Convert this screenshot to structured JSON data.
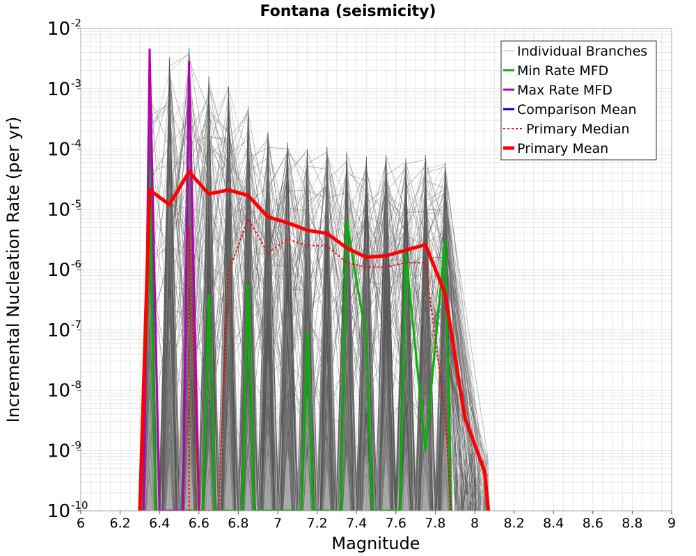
{
  "chart_data": {
    "type": "line",
    "title": "Fontana (seismicity)",
    "xlabel": "Magnitude",
    "ylabel": "Incremental Nucleation Rate (per yr)",
    "xlim": [
      6,
      9
    ],
    "ylim": [
      1e-10,
      0.01
    ],
    "yscale": "log",
    "grid": true,
    "legend_position": "top-right",
    "xticks": [
      {
        "value": 6,
        "label": "6"
      },
      {
        "value": 6.2,
        "label": "6.2"
      },
      {
        "value": 6.4,
        "label": "6.4"
      },
      {
        "value": 6.6,
        "label": "6.6"
      },
      {
        "value": 6.8,
        "label": "6.8"
      },
      {
        "value": 7,
        "label": "7"
      },
      {
        "value": 7.2,
        "label": "7.2"
      },
      {
        "value": 7.4,
        "label": "7.4"
      },
      {
        "value": 7.6,
        "label": "7.6"
      },
      {
        "value": 7.8,
        "label": "7.8"
      },
      {
        "value": 8,
        "label": "8"
      },
      {
        "value": 8.2,
        "label": "8.2"
      },
      {
        "value": 8.4,
        "label": "8.4"
      },
      {
        "value": 8.6,
        "label": "8.6"
      },
      {
        "value": 8.8,
        "label": "8.8"
      },
      {
        "value": 9,
        "label": "9"
      }
    ],
    "yticks": [
      {
        "exp": -10,
        "base": "10",
        "sup": "-10"
      },
      {
        "exp": -9,
        "base": "10",
        "sup": "-9"
      },
      {
        "exp": -8,
        "base": "10",
        "sup": "-8"
      },
      {
        "exp": -7,
        "base": "10",
        "sup": "-7"
      },
      {
        "exp": -6,
        "base": "10",
        "sup": "-6"
      },
      {
        "exp": -5,
        "base": "10",
        "sup": "-5"
      },
      {
        "exp": -4,
        "base": "10",
        "sup": "-4"
      },
      {
        "exp": -3,
        "base": "10",
        "sup": "-3"
      },
      {
        "exp": -2,
        "base": "10",
        "sup": "-2"
      }
    ],
    "colors": {
      "individual": "#555555",
      "individual_light": "#bdbdbd",
      "min": "#00b400",
      "max": "#b400b4",
      "comparison": "#0000cc",
      "median": "#ff0000",
      "mean": "#ff0000",
      "grid": "#e6e6e6"
    },
    "spikes": {
      "x": [
        6.35,
        6.45,
        6.55,
        6.65,
        6.75,
        6.85,
        6.95,
        7.05,
        7.15,
        7.25,
        7.35,
        7.45,
        7.55,
        7.65,
        7.75,
        7.85
      ],
      "peak": [
        0.0045,
        0.0033,
        0.0048,
        0.0016,
        0.0011,
        0.0005,
        0.00019,
        0.00013,
        0.0001,
        0.00011,
        9e-05,
        7.5e-05,
        8e-05,
        7e-05,
        8e-05,
        6e-05
      ]
    },
    "branch_extent": {
      "x_min": 6.3,
      "x_max": 8.07
    },
    "series": [
      {
        "name": "Individual Branches",
        "legend_style": "thin-light",
        "note_values": "many branch curves forming the gray envelope"
      },
      {
        "name": "Min Rate MFD",
        "color": "#00b400",
        "width": 3,
        "dash": "",
        "points": [
          [
            6.32,
            1e-10
          ],
          [
            6.35,
            5e-05
          ],
          [
            6.38,
            1e-10
          ],
          [
            6.62,
            1e-10
          ],
          [
            6.65,
            3.8e-07
          ],
          [
            6.68,
            1e-10
          ],
          [
            6.82,
            1e-10
          ],
          [
            6.85,
            5.5e-07
          ],
          [
            6.88,
            1e-10
          ],
          [
            7.12,
            1e-10
          ],
          [
            7.15,
            9e-08
          ],
          [
            7.18,
            1e-10
          ],
          [
            7.32,
            1e-10
          ],
          [
            7.35,
            6.5e-06
          ],
          [
            7.45,
            7e-08
          ],
          [
            7.48,
            1e-10
          ],
          [
            7.62,
            1e-10
          ],
          [
            7.65,
            2e-06
          ],
          [
            7.75,
            1e-09
          ],
          [
            7.85,
            3.2e-06
          ],
          [
            7.88,
            1e-10
          ]
        ]
      },
      {
        "name": "Max Rate MFD",
        "color": "#b400b4",
        "width": 3,
        "dash": "",
        "points": [
          [
            6.32,
            1e-10
          ],
          [
            6.35,
            0.0045
          ],
          [
            6.4,
            1e-10
          ],
          [
            6.52,
            1e-10
          ],
          [
            6.55,
            0.0028
          ],
          [
            6.6,
            1e-10
          ]
        ]
      },
      {
        "name": "Comparison Mean",
        "color": "#0000cc",
        "width": 3,
        "dash": "",
        "points": []
      },
      {
        "name": "Primary Median",
        "color": "#ff0000",
        "width": 2,
        "dash": "3,3",
        "points": [
          [
            6.55,
            1e-10
          ],
          [
            6.55,
            5e-06
          ],
          [
            6.6,
            1e-10
          ],
          [
            6.7,
            1e-10
          ],
          [
            6.75,
            9e-07
          ],
          [
            6.85,
            7e-06
          ],
          [
            6.95,
            1.9e-06
          ],
          [
            7.05,
            3.2e-06
          ],
          [
            7.15,
            2.5e-06
          ],
          [
            7.25,
            2.5e-06
          ],
          [
            7.35,
            1.3e-06
          ],
          [
            7.45,
            1.1e-06
          ],
          [
            7.55,
            1.1e-06
          ],
          [
            7.65,
            1.3e-06
          ],
          [
            7.75,
            1.3e-06
          ],
          [
            7.85,
            4e-09
          ],
          [
            7.88,
            1e-10
          ]
        ]
      },
      {
        "name": "Primary Mean",
        "color": "#ff0000",
        "width": 5,
        "dash": "",
        "points": [
          [
            6.3,
            1e-10
          ],
          [
            6.35,
            2.1e-05
          ],
          [
            6.45,
            1.2e-05
          ],
          [
            6.55,
            4.2e-05
          ],
          [
            6.65,
            1.8e-05
          ],
          [
            6.75,
            2.1e-05
          ],
          [
            6.85,
            1.7e-05
          ],
          [
            6.95,
            7.5e-06
          ],
          [
            7.05,
            6e-06
          ],
          [
            7.15,
            4.5e-06
          ],
          [
            7.25,
            4e-06
          ],
          [
            7.35,
            2.3e-06
          ],
          [
            7.45,
            1.6e-06
          ],
          [
            7.55,
            1.7e-06
          ],
          [
            7.65,
            2.1e-06
          ],
          [
            7.75,
            2.6e-06
          ],
          [
            7.85,
            4e-07
          ],
          [
            7.95,
            3.5e-09
          ],
          [
            8.05,
            4.5e-10
          ],
          [
            8.07,
            1e-10
          ]
        ]
      }
    ]
  }
}
